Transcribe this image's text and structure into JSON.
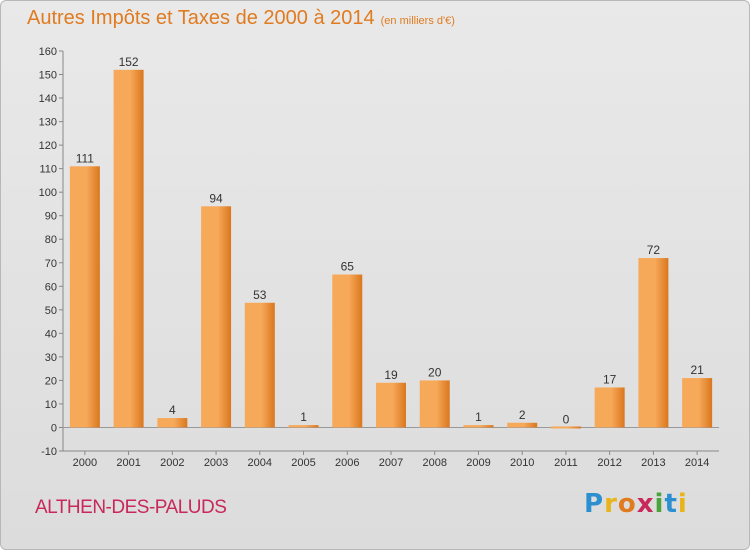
{
  "header": {
    "title": "Autres Impôts et Taxes de 2000 à 2014",
    "subtitle": "(en milliers d'€)"
  },
  "footer": {
    "commune": "ALTHEN-DES-PALUDS",
    "logo_letters": [
      "P",
      "r",
      "o",
      "x",
      "i",
      "t",
      "i"
    ],
    "logo_colors": [
      "#2b8fd0",
      "#e8b41a",
      "#e07b1f",
      "#c8285b",
      "#4aa33c",
      "#2b8fd0",
      "#e8b41a"
    ]
  },
  "colors": {
    "bar_light": "#f7a95a",
    "bar_dark": "#d9771e",
    "title": "#e07b1f",
    "commune": "#c8285b"
  },
  "chart_data": {
    "type": "bar",
    "categories": [
      "2000",
      "2001",
      "2002",
      "2003",
      "2004",
      "2005",
      "2006",
      "2007",
      "2008",
      "2009",
      "2010",
      "2011",
      "2012",
      "2013",
      "2014"
    ],
    "values": [
      111,
      152,
      4,
      94,
      53,
      1,
      65,
      19,
      20,
      1,
      2,
      0,
      17,
      72,
      21
    ],
    "ylim": [
      -10,
      160
    ],
    "yticks": [
      -10,
      0,
      10,
      20,
      30,
      40,
      50,
      60,
      70,
      80,
      90,
      100,
      110,
      120,
      130,
      140,
      150,
      160
    ],
    "grid": false
  }
}
